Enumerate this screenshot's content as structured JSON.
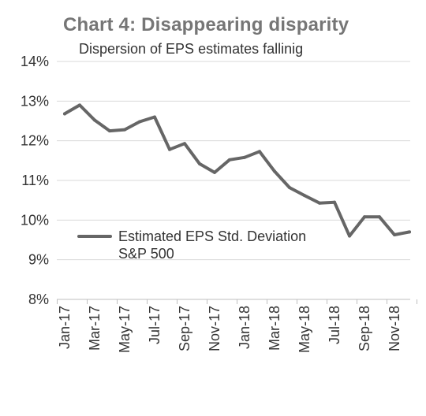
{
  "chart_data": {
    "type": "line",
    "title": "Chart 4: Disappearing disparity",
    "subtitle": "Dispersion of EPS estimates fallinig",
    "xlabel": "",
    "ylabel": "",
    "ylim": [
      8,
      14
    ],
    "yticks": [
      "14%",
      "13%",
      "12%",
      "11%",
      "10%",
      "9%",
      "8%"
    ],
    "ytick_values": [
      14,
      13,
      12,
      11,
      10,
      9,
      8
    ],
    "xticks": [
      "Jan-17",
      "Mar-17",
      "May-17",
      "Jul-17",
      "Sep-17",
      "Nov-17",
      "Jan-18",
      "Mar-18",
      "May-18",
      "Jul-18",
      "Sep-18",
      "Nov-18"
    ],
    "grid": true,
    "legend": "left-middle",
    "series": [
      {
        "name": "Estimated EPS Std. Deviation S&P 500",
        "legend_lines": [
          "Estimated EPS Std. Deviation",
          "S&P 500"
        ],
        "color": "#666666",
        "values": [
          12.68,
          12.9,
          12.52,
          12.25,
          12.28,
          12.48,
          12.6,
          11.78,
          11.93,
          11.42,
          11.2,
          11.52,
          11.58,
          11.73,
          11.23,
          10.82,
          10.62,
          10.43,
          10.45,
          9.6,
          10.08,
          10.08,
          9.63,
          9.7
        ]
      }
    ]
  }
}
